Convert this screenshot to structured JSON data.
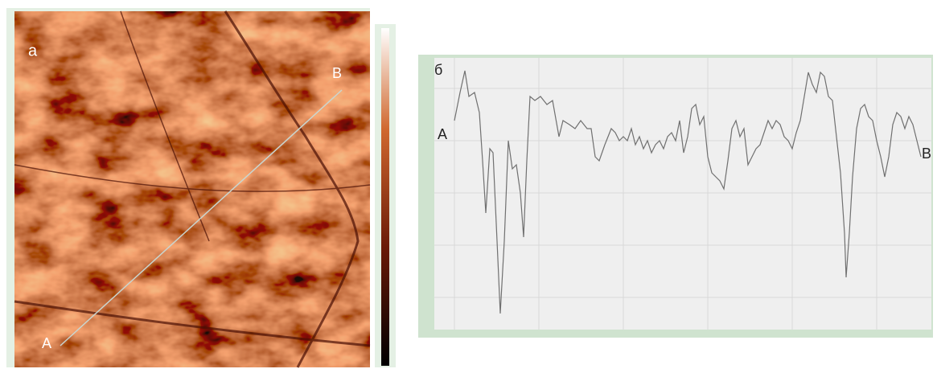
{
  "chart_data": [
    {
      "type": "image",
      "panel_label": "а",
      "start_label": "A",
      "end_label": "B"
    },
    {
      "type": "line",
      "panel_label": "б",
      "start_label": "A",
      "end_label": "B",
      "color": "#707070",
      "xlim": [
        0,
        580
      ],
      "ylim": [
        0,
        340
      ],
      "x": [
        0,
        7,
        13,
        18,
        25,
        31,
        35,
        39,
        44,
        48,
        53,
        57,
        62,
        67,
        72,
        77,
        82,
        86,
        90,
        94,
        100,
        107,
        115,
        122,
        130,
        135,
        143,
        150,
        157,
        165,
        170,
        175,
        180,
        187,
        195,
        200,
        205,
        210,
        215,
        220,
        225,
        230,
        235,
        240,
        245,
        250,
        255,
        260,
        265,
        270,
        275,
        280,
        285,
        290,
        295,
        300,
        305,
        310,
        315,
        320,
        325,
        330,
        335,
        340,
        345,
        350,
        355,
        360,
        365,
        370,
        375,
        380,
        385,
        390,
        395,
        400,
        405,
        410,
        415,
        420,
        425,
        430,
        435,
        440,
        445,
        450,
        455,
        460,
        465,
        470,
        475,
        480,
        485,
        487,
        491,
        495,
        500,
        505,
        510,
        515,
        520,
        525,
        530,
        535,
        540,
        545,
        550,
        555,
        560,
        565,
        570,
        575,
        580
      ],
      "values": [
        260,
        295,
        322,
        290,
        295,
        270,
        210,
        145,
        225,
        220,
        110,
        20,
        110,
        235,
        200,
        205,
        170,
        115,
        210,
        290,
        285,
        290,
        280,
        285,
        240,
        260,
        255,
        250,
        260,
        250,
        250,
        215,
        210,
        230,
        250,
        245,
        235,
        240,
        235,
        250,
        230,
        240,
        225,
        235,
        220,
        230,
        235,
        225,
        240,
        245,
        235,
        260,
        220,
        240,
        275,
        280,
        255,
        265,
        215,
        195,
        190,
        185,
        175,
        210,
        250,
        260,
        240,
        250,
        205,
        215,
        225,
        230,
        245,
        260,
        250,
        260,
        255,
        240,
        235,
        225,
        245,
        260,
        290,
        320,
        305,
        295,
        320,
        315,
        290,
        285,
        240,
        195,
        120,
        65,
        120,
        190,
        250,
        275,
        280,
        265,
        260,
        235,
        215,
        190,
        215,
        255,
        270,
        265,
        250,
        265,
        255,
        235,
        215
      ]
    }
  ]
}
